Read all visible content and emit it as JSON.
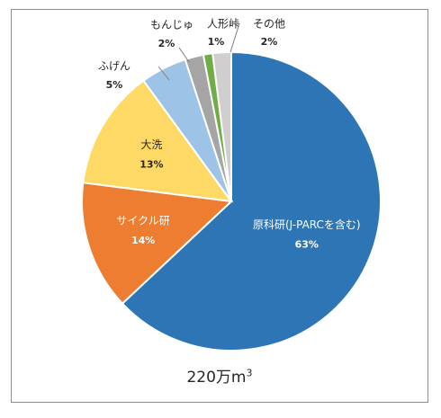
{
  "chart_data": {
    "type": "pie",
    "title": "",
    "total_label": {
      "base": "220万m",
      "superscript": "3"
    },
    "slices": [
      {
        "name": "原科研(J-PARCを含む)",
        "value": 63,
        "label": "63%",
        "color": "#2E75B6"
      },
      {
        "name": "サイクル研",
        "value": 14,
        "label": "14%",
        "color": "#ED7D31"
      },
      {
        "name": "大洗",
        "value": 13,
        "label": "13%",
        "color": "#FFD966"
      },
      {
        "name": "ふげん",
        "value": 5,
        "label": "5%",
        "color": "#9DC3E6"
      },
      {
        "name": "もんじゅ",
        "value": 2,
        "label": "2%",
        "color": "#A5A5A5"
      },
      {
        "name": "人形峠",
        "value": 1,
        "label": "1%",
        "color": "#70AD47"
      },
      {
        "name": "その他",
        "value": 2,
        "label": "2%",
        "color": "#D0CECE"
      }
    ]
  }
}
